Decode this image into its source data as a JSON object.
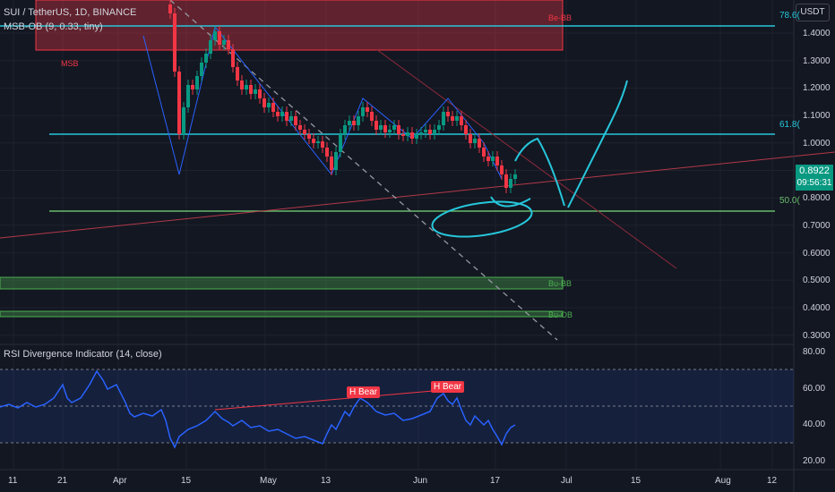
{
  "header": {
    "symbol": "SUI / TetherUS, 1D, BINANCE",
    "indicator": "MSB-OB (9, 0.33, tiny)"
  },
  "currency": "USDT",
  "price_axis": [
    "1.4000",
    "1.3000",
    "1.2000",
    "1.1000",
    "1.0000",
    "0.9000",
    "0.8000",
    "0.7000",
    "0.6000",
    "0.5000",
    "0.4000",
    "0.3000"
  ],
  "current_price": {
    "value": "0.8922",
    "countdown": "09:56:31"
  },
  "fib_labels": {
    "f786": "78.6(",
    "f618": "61.8(",
    "f50": "50.0("
  },
  "ob_labels": {
    "bear": "Be-BB",
    "msb": "MSB",
    "bull1": "Bu-BB",
    "bull2": "Bu-OB"
  },
  "rsi": {
    "title": "RSI Divergence Indicator (14, close)",
    "axis": [
      "80.00",
      "60.00",
      "40.00",
      "20.00"
    ],
    "signals": [
      "H Bear",
      "H Bear"
    ]
  },
  "time_axis": [
    "11",
    "21",
    "Apr",
    "15",
    "May",
    "13",
    "Jun",
    "17",
    "Jul",
    "15",
    "Aug",
    "12"
  ],
  "colors": {
    "up": "#089981",
    "down": "#f23645",
    "bg": "#131722",
    "rsi": "#2962ff",
    "fib": "#26c6da",
    "fib50": "#66bb6a"
  }
}
